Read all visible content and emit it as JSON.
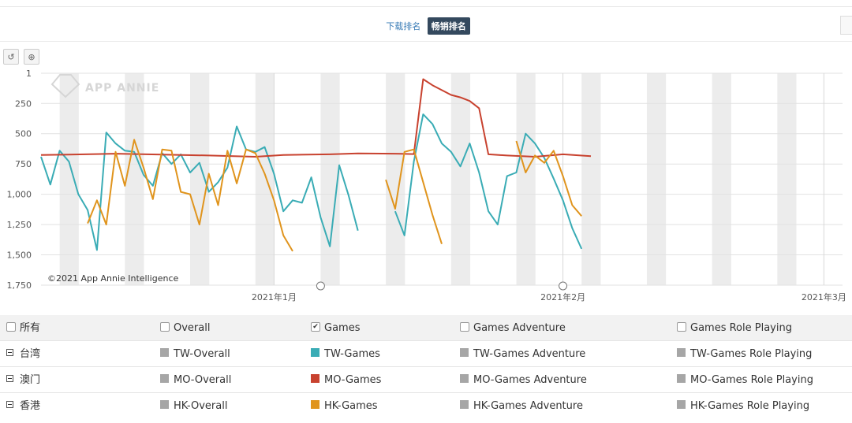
{
  "tabs": {
    "download": "下载排名",
    "grossing": "畅销排名"
  },
  "toolbar": {
    "reset_icon": "undo-icon",
    "zoom_icon": "magnifier-icon",
    "reset_glyph": "↺",
    "zoom_glyph": "⊕"
  },
  "chart_data": {
    "type": "line",
    "watermark": "APP ANNIE",
    "credit": "©2021 App Annie Intelligence",
    "y_reversed": true,
    "ylim": [
      1,
      1750
    ],
    "yticks": [
      {
        "v": 1,
        "label": "1"
      },
      {
        "v": 250,
        "label": "250"
      },
      {
        "v": 500,
        "label": "500"
      },
      {
        "v": 750,
        "label": "750"
      },
      {
        "v": 1000,
        "label": "1,000"
      },
      {
        "v": 1250,
        "label": "1,250"
      },
      {
        "v": 1500,
        "label": "1,500"
      },
      {
        "v": 1750,
        "label": "1,750"
      }
    ],
    "x_start": "2020-12-07",
    "x_end": "2021-03-03",
    "xticks": [
      {
        "date": "2021-01-01",
        "label": "2021年1月"
      },
      {
        "date": "2021-02-01",
        "label": "2021年2月"
      },
      {
        "date": "2021-03-01",
        "label": "2021年3月"
      }
    ],
    "weekend_bands_start": [
      "2020-12-09",
      "2020-12-16",
      "2020-12-23",
      "2020-12-30",
      "2021-01-06",
      "2021-01-13",
      "2021-01-20",
      "2021-01-27",
      "2021-02-03",
      "2021-02-10",
      "2021-02-17",
      "2021-02-24"
    ],
    "series": [
      {
        "name": "TW-Games",
        "color": "#3aacb5",
        "points": [
          [
            "2020-12-07",
            690
          ],
          [
            "2020-12-08",
            920
          ],
          [
            "2020-12-09",
            640
          ],
          [
            "2020-12-10",
            730
          ],
          [
            "2020-12-11",
            1000
          ],
          [
            "2020-12-12",
            1130
          ],
          [
            "2020-12-13",
            1460
          ],
          [
            "2020-12-14",
            490
          ],
          [
            "2020-12-15",
            580
          ],
          [
            "2020-12-16",
            640
          ],
          [
            "2020-12-17",
            650
          ],
          [
            "2020-12-18",
            840
          ],
          [
            "2020-12-19",
            930
          ],
          [
            "2020-12-20",
            660
          ],
          [
            "2020-12-21",
            750
          ],
          [
            "2020-12-22",
            670
          ],
          [
            "2020-12-23",
            820
          ],
          [
            "2020-12-24",
            740
          ],
          [
            "2020-12-25",
            980
          ],
          [
            "2020-12-26",
            900
          ],
          [
            "2020-12-27",
            780
          ],
          [
            "2020-12-28",
            440
          ],
          [
            "2020-12-29",
            630
          ],
          [
            "2020-12-30",
            650
          ],
          [
            "2020-12-31",
            610
          ],
          [
            "2021-01-01",
            830
          ],
          [
            "2021-01-02",
            1140
          ],
          [
            "2021-01-03",
            1050
          ],
          [
            "2021-01-04",
            1070
          ],
          [
            "2021-01-05",
            860
          ],
          [
            "2021-01-06",
            1190
          ],
          [
            "2021-01-07",
            1430
          ],
          [
            "2021-01-08",
            760
          ],
          [
            "2021-01-09",
            1010
          ],
          [
            "2021-01-10",
            1300
          ],
          null,
          [
            "2021-01-14",
            1140
          ],
          [
            "2021-01-15",
            1340
          ],
          [
            "2021-01-16",
            730
          ],
          [
            "2021-01-17",
            340
          ],
          [
            "2021-01-18",
            420
          ],
          [
            "2021-01-19",
            580
          ],
          [
            "2021-01-20",
            650
          ],
          [
            "2021-01-21",
            770
          ],
          [
            "2021-01-22",
            580
          ],
          [
            "2021-01-23",
            820
          ],
          [
            "2021-01-24",
            1140
          ],
          [
            "2021-01-25",
            1250
          ],
          [
            "2021-01-26",
            850
          ],
          [
            "2021-01-27",
            820
          ],
          [
            "2021-01-28",
            500
          ],
          [
            "2021-01-29",
            580
          ],
          [
            "2021-01-30",
            700
          ],
          [
            "2021-01-31",
            870
          ],
          [
            "2021-02-01",
            1050
          ],
          [
            "2021-02-02",
            1280
          ],
          [
            "2021-02-03",
            1450
          ]
        ]
      },
      {
        "name": "MO-Games",
        "color": "#c8422f",
        "points": [
          [
            "2020-12-07",
            675
          ],
          [
            "2020-12-10",
            672
          ],
          [
            "2020-12-15",
            665
          ],
          [
            "2020-12-20",
            672
          ],
          [
            "2020-12-25",
            680
          ],
          [
            "2020-12-30",
            690
          ],
          [
            "2021-01-02",
            675
          ],
          [
            "2021-01-07",
            670
          ],
          [
            "2021-01-10",
            662
          ],
          [
            "2021-01-14",
            665
          ],
          [
            "2021-01-16",
            668
          ],
          [
            "2021-01-17",
            50
          ],
          [
            "2021-01-18",
            100
          ],
          [
            "2021-01-19",
            140
          ],
          [
            "2021-01-20",
            180
          ],
          [
            "2021-01-21",
            200
          ],
          [
            "2021-01-22",
            230
          ],
          [
            "2021-01-23",
            290
          ],
          [
            "2021-01-24",
            670
          ],
          [
            "2021-01-26",
            680
          ],
          [
            "2021-01-29",
            690
          ],
          [
            "2021-02-01",
            670
          ],
          [
            "2021-02-04",
            685
          ]
        ]
      },
      {
        "name": "HK-Games",
        "color": "#e0941d",
        "points": [
          [
            "2020-12-12",
            1240
          ],
          [
            "2020-12-13",
            1050
          ],
          [
            "2020-12-14",
            1250
          ],
          [
            "2020-12-15",
            650
          ],
          [
            "2020-12-16",
            930
          ],
          [
            "2020-12-17",
            550
          ],
          [
            "2020-12-18",
            780
          ],
          [
            "2020-12-19",
            1040
          ],
          [
            "2020-12-20",
            630
          ],
          [
            "2020-12-21",
            640
          ],
          [
            "2020-12-22",
            980
          ],
          [
            "2020-12-23",
            1000
          ],
          [
            "2020-12-24",
            1250
          ],
          [
            "2020-12-25",
            830
          ],
          [
            "2020-12-26",
            1090
          ],
          [
            "2020-12-27",
            640
          ],
          [
            "2020-12-28",
            910
          ],
          [
            "2020-12-29",
            630
          ],
          [
            "2020-12-30",
            660
          ],
          [
            "2020-12-31",
            830
          ],
          [
            "2021-01-01",
            1050
          ],
          [
            "2021-01-02",
            1340
          ],
          [
            "2021-01-03",
            1470
          ],
          null,
          [
            "2021-01-13",
            880
          ],
          [
            "2021-01-14",
            1120
          ],
          [
            "2021-01-15",
            650
          ],
          [
            "2021-01-16",
            630
          ],
          [
            "2021-01-17",
            900
          ],
          [
            "2021-01-18",
            1170
          ],
          [
            "2021-01-19",
            1410
          ],
          null,
          [
            "2021-01-27",
            560
          ],
          [
            "2021-01-28",
            820
          ],
          [
            "2021-01-29",
            680
          ],
          [
            "2021-01-30",
            740
          ],
          [
            "2021-01-31",
            640
          ],
          [
            "2021-02-01",
            850
          ],
          [
            "2021-02-02",
            1090
          ],
          [
            "2021-02-03",
            1180
          ]
        ]
      }
    ]
  },
  "legend": {
    "header": {
      "all": "所有",
      "overall": "Overall",
      "games": "Games",
      "adventure": "Games Adventure",
      "rpg": "Games Role Playing",
      "check_mark": "✔"
    },
    "rows": [
      {
        "region": "台湾",
        "overall": "TW-Overall",
        "games": "TW-Games",
        "adventure": "TW-Games Adventure",
        "rpg": "TW-Games Role Playing",
        "games_color": "#3aacb5"
      },
      {
        "region": "澳门",
        "overall": "MO-Overall",
        "games": "MO-Games",
        "adventure": "MO-Games Adventure",
        "rpg": "MO-Games Role Playing",
        "games_color": "#c8422f"
      },
      {
        "region": "香港",
        "overall": "HK-Overall",
        "games": "HK-Games",
        "adventure": "HK-Games Adventure",
        "rpg": "HK-Games Role Playing",
        "games_color": "#e0941d"
      }
    ],
    "inactive_color": "#a6a6a6"
  }
}
